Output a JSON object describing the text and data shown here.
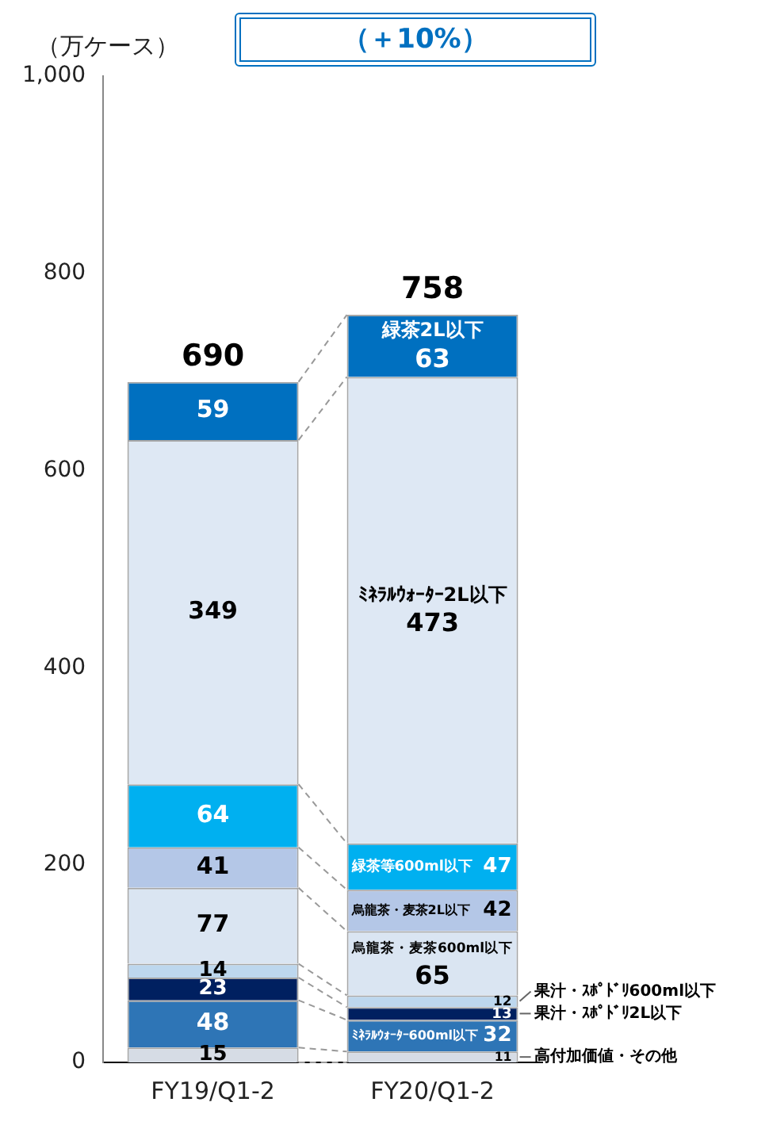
{
  "chart_data": {
    "type": "bar",
    "stacked": true,
    "ylabel": "（万ケース）",
    "annotations": [
      "（＋10%）"
    ],
    "categories": [
      "FY19/Q1-2",
      "FY20/Q1-2"
    ],
    "series": [
      {
        "name": "高付加価値・その他",
        "color": "#d6dce5",
        "values": [
          15,
          11
        ]
      },
      {
        "name": "ﾐﾈﾗﾙｳｫｰﾀｰ600ml以下",
        "color": "#2e75b6",
        "values": [
          48,
          32
        ]
      },
      {
        "name": "果汁・ｽﾎﾟﾄﾞﾘ2L以下",
        "color": "#002060",
        "values": [
          23,
          13
        ]
      },
      {
        "name": "果汁・ｽﾎﾟﾄﾞﾘ600ml以下",
        "color": "#bdd7ee",
        "values": [
          14,
          12
        ]
      },
      {
        "name": "烏龍茶・麦茶600ml以下",
        "color": "#dae5f2",
        "values": [
          77,
          65
        ]
      },
      {
        "name": "烏龍茶・麦茶2L以下",
        "color": "#b4c7e7",
        "values": [
          41,
          42
        ]
      },
      {
        "name": "緑茶等600ml以下",
        "color": "#00b0f0",
        "values": [
          64,
          47
        ]
      },
      {
        "name": "ﾐﾈﾗﾙｳｫｰﾀｰ2L以下",
        "color": "#dee8f4",
        "values": [
          349,
          473
        ]
      },
      {
        "name": "緑茶2L以下",
        "color": "#0070c0",
        "values": [
          59,
          63
        ]
      }
    ],
    "totals": [
      "690",
      "758"
    ],
    "data_labels": true,
    "legend": false,
    "grid": false,
    "ylim": [
      0,
      1000
    ],
    "yticks": [
      0,
      200,
      400,
      600,
      800,
      {
        "value": 1000,
        "label": "1,000"
      }
    ]
  }
}
